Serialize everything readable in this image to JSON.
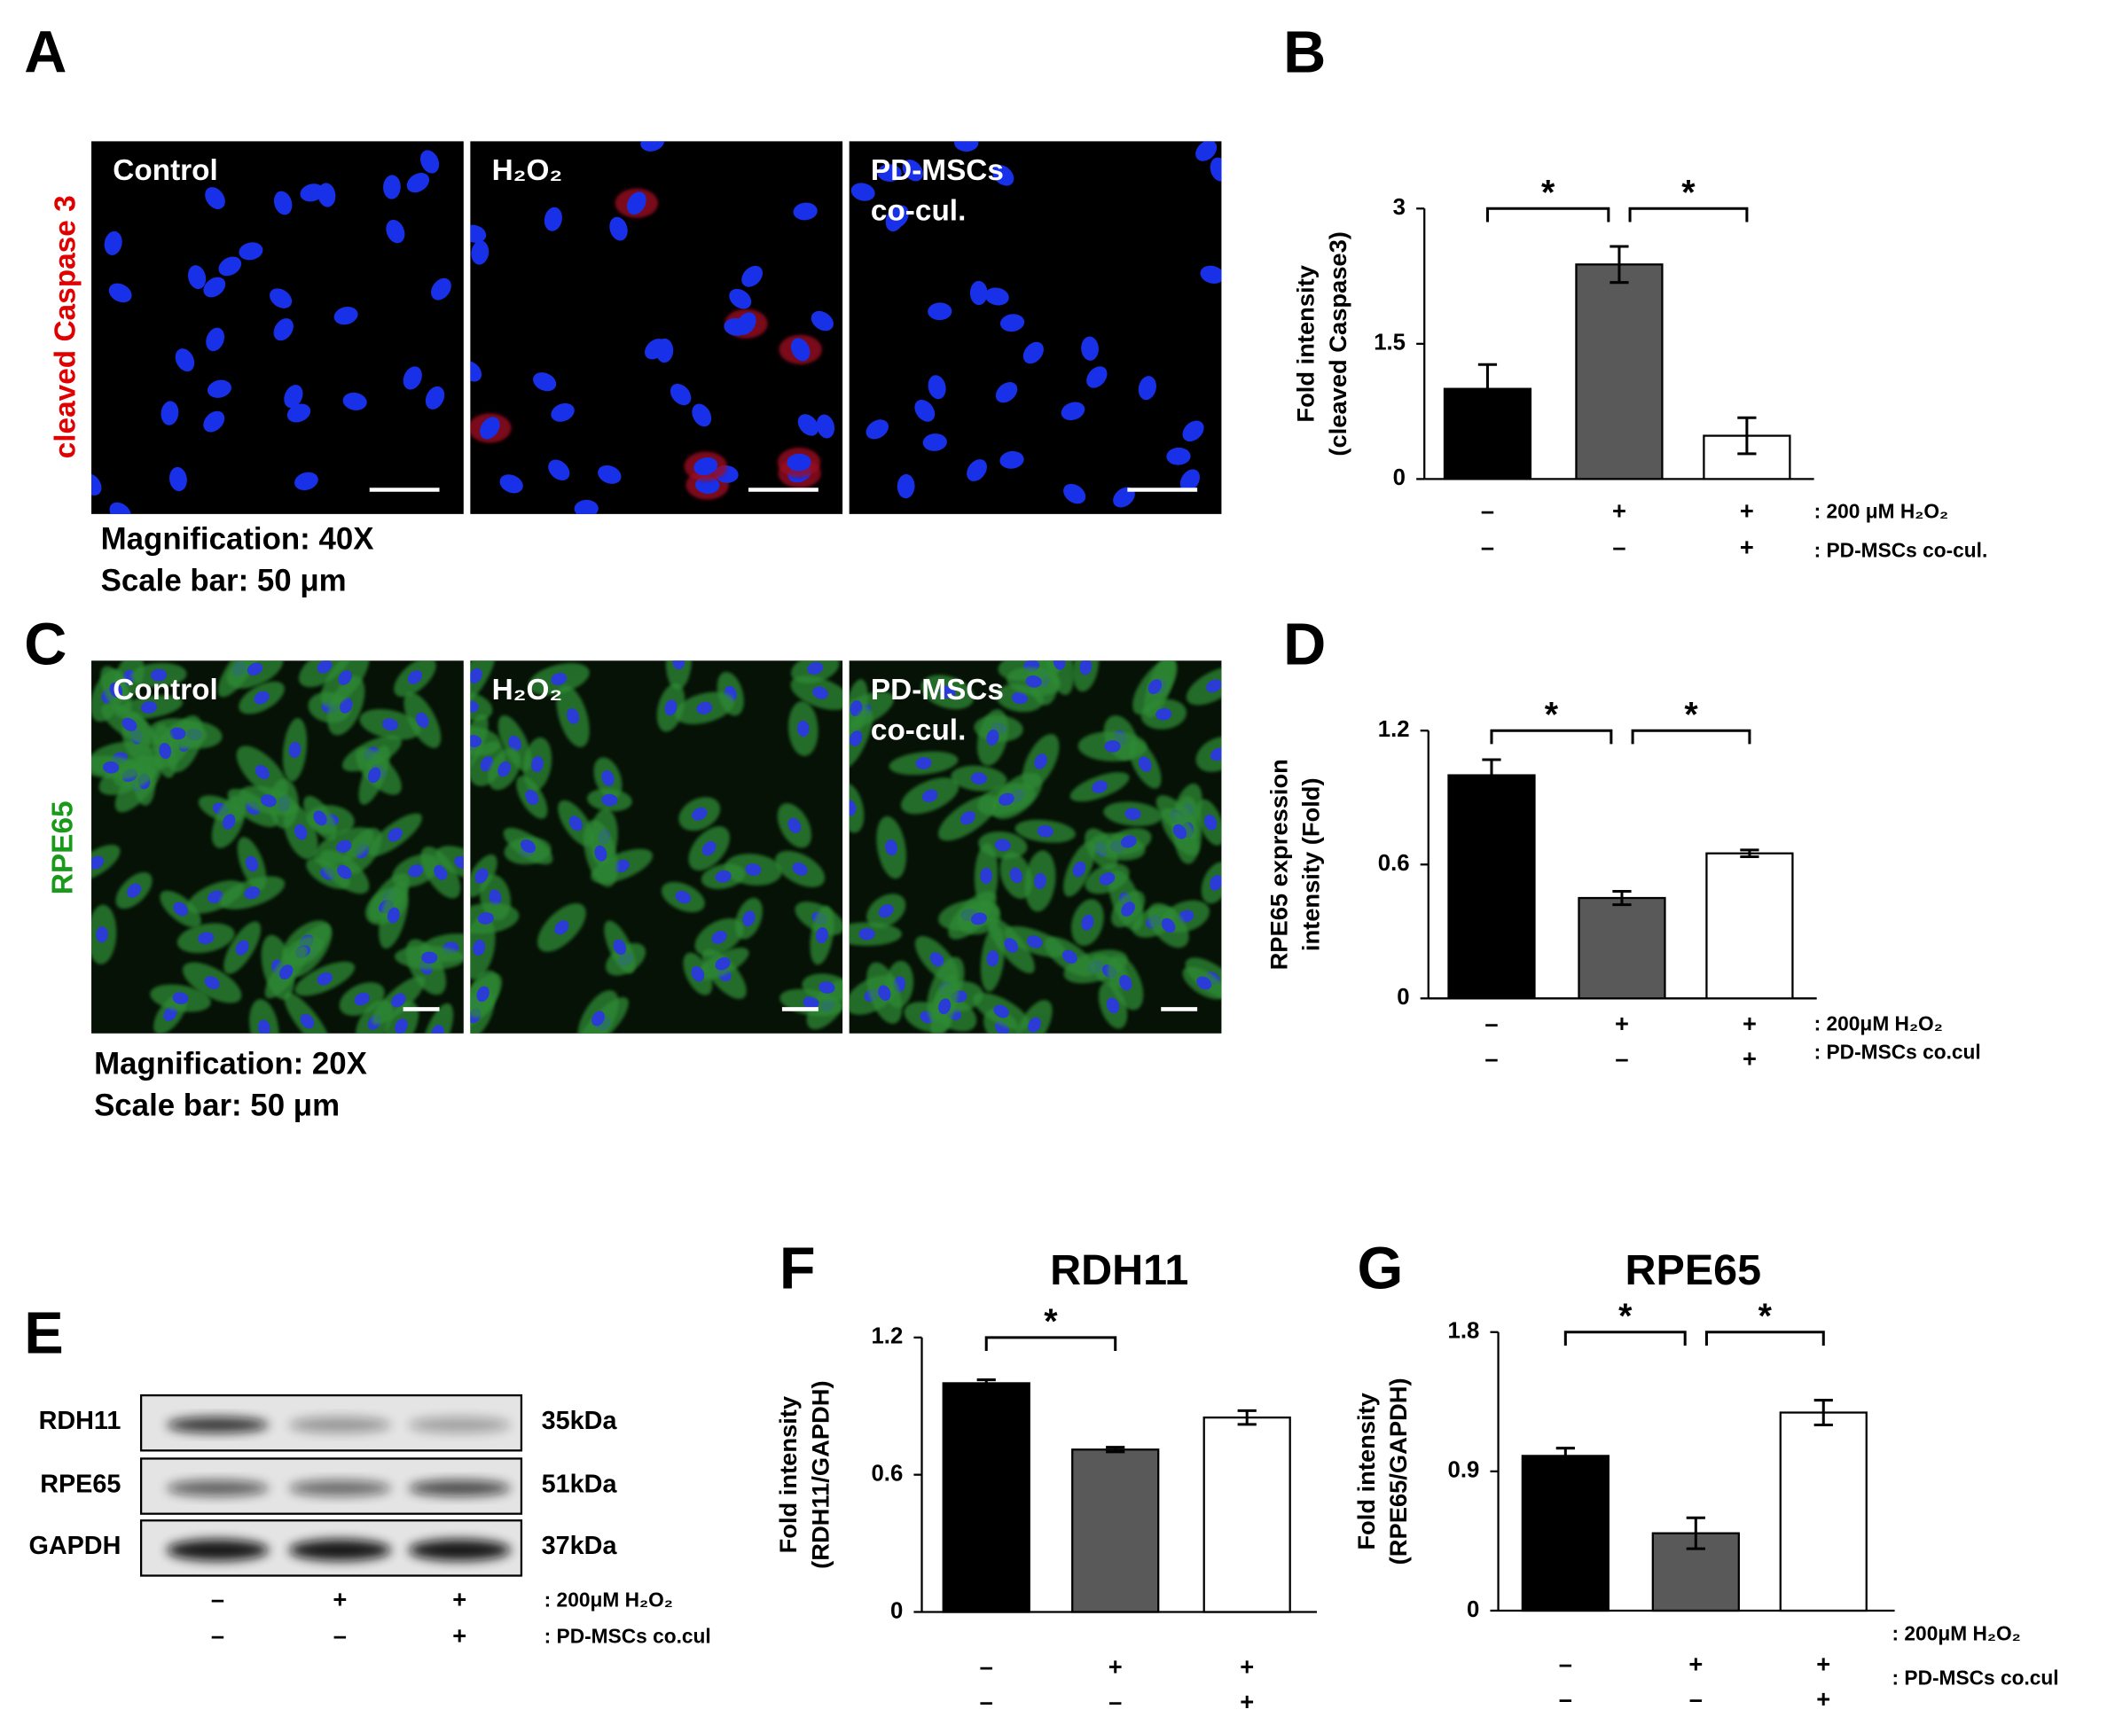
{
  "panel_labels": [
    "A",
    "B",
    "C",
    "D",
    "E",
    "F",
    "G"
  ],
  "microscopy": [
    {
      "stain": "cleaved Caspase 3",
      "stain_color": "#e00000",
      "conditions": [
        [
          "Control"
        ],
        [
          "H₂O₂"
        ],
        [
          "PD-MSCs",
          "co-cul."
        ]
      ],
      "caption": [
        "Magnification: 40X",
        "Scale bar: 50 μm"
      ]
    },
    {
      "stain": "RPE65",
      "stain_color": "#1a9a1a",
      "conditions": [
        [
          "Control"
        ],
        [
          "H₂O₂"
        ],
        [
          "PD-MSCs",
          "co-cul."
        ]
      ],
      "caption": [
        "Magnification: 20X",
        "Scale bar: 50 μm"
      ]
    }
  ],
  "western": {
    "proteins": [
      "RDH11",
      "RPE65",
      "GAPDH"
    ],
    "sizes": [
      "35kDa",
      "51kDa",
      "37kDa"
    ],
    "treatment_labels": [
      ": 200μM H₂O₂",
      ": PD-MSCs co.cul"
    ],
    "treatment_signs": [
      [
        "–",
        "+",
        "+"
      ],
      [
        "–",
        "–",
        "+"
      ]
    ]
  },
  "chart_data": [
    {
      "type": "bar",
      "y_label": [
        "Fold intensity",
        "(cleaved Caspase3)"
      ],
      "values": [
        1.0,
        2.38,
        0.48
      ],
      "errors": [
        0.27,
        0.2,
        0.2
      ],
      "colors": [
        "#000000",
        "#595959",
        "#ffffff"
      ],
      "ylim": [
        0,
        3
      ],
      "yticks": [
        0,
        1.5,
        3
      ],
      "significance": [
        {
          "bars": [
            0,
            1
          ],
          "label": "*"
        },
        {
          "bars": [
            1,
            2
          ],
          "label": "*"
        }
      ],
      "treatment_labels": [
        ": 200 μM H₂O₂",
        ": PD-MSCs co-cul."
      ],
      "treatment_signs": [
        [
          "–",
          "+",
          "+"
        ],
        [
          "–",
          "–",
          "+"
        ]
      ]
    },
    {
      "type": "bar",
      "y_label": [
        "RPE65 expression",
        "intensity (Fold)"
      ],
      "values": [
        1.0,
        0.45,
        0.65
      ],
      "errors": [
        0.07,
        0.03,
        0.015
      ],
      "colors": [
        "#000000",
        "#595959",
        "#ffffff"
      ],
      "ylim": [
        0,
        1.2
      ],
      "yticks": [
        0,
        0.6,
        1.2
      ],
      "significance": [
        {
          "bars": [
            0,
            1
          ],
          "label": "*"
        },
        {
          "bars": [
            1,
            2
          ],
          "label": "*"
        }
      ],
      "treatment_labels": [
        ": 200μM H₂O₂",
        ": PD-MSCs co.cul"
      ],
      "treatment_signs": [
        [
          "–",
          "+",
          "+"
        ],
        [
          "–",
          "–",
          "+"
        ]
      ]
    },
    {
      "type": "bar",
      "title": "RDH11",
      "y_label": [
        "Fold intensity",
        "(RDH11/GAPDH)"
      ],
      "values": [
        1.0,
        0.71,
        0.85
      ],
      "errors": [
        0.015,
        0.01,
        0.03
      ],
      "colors": [
        "#000000",
        "#595959",
        "#ffffff"
      ],
      "ylim": [
        0,
        1.2
      ],
      "yticks": [
        0,
        0.6,
        1.2
      ],
      "significance": [
        {
          "bars": [
            0,
            1
          ],
          "label": "*"
        }
      ],
      "treatment_signs": [
        [
          "–",
          "+",
          "+"
        ],
        [
          "–",
          "–",
          "+"
        ]
      ]
    },
    {
      "type": "bar",
      "title": "RPE65",
      "y_label": [
        "Fold intensity",
        "(RPE65/GAPDH)"
      ],
      "values": [
        1.0,
        0.5,
        1.28
      ],
      "errors": [
        0.05,
        0.1,
        0.08
      ],
      "colors": [
        "#000000",
        "#595959",
        "#ffffff"
      ],
      "ylim": [
        0,
        1.8
      ],
      "yticks": [
        0,
        0.9,
        1.8
      ],
      "significance": [
        {
          "bars": [
            0,
            1
          ],
          "label": "*"
        },
        {
          "bars": [
            1,
            2
          ],
          "label": "*"
        }
      ],
      "treatment_labels": [
        ": 200μM H₂O₂",
        ": PD-MSCs co.cul"
      ],
      "treatment_signs": [
        [
          "–",
          "+",
          "+"
        ],
        [
          "–",
          "–",
          "+"
        ]
      ]
    }
  ]
}
